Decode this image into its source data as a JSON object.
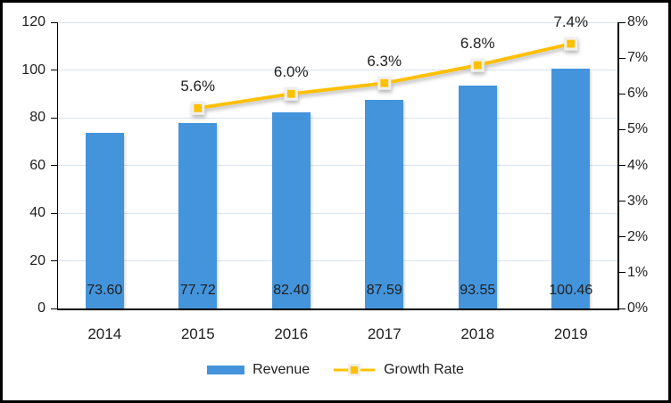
{
  "chart_data": {
    "type": "bar",
    "subtype": "combo-bar-line-dual-axis",
    "categories": [
      "2014",
      "2015",
      "2016",
      "2017",
      "2018",
      "2019"
    ],
    "series": [
      {
        "name": "Revenue",
        "type": "bar",
        "axis": "left",
        "values": [
          73.6,
          77.72,
          82.4,
          87.59,
          93.55,
          100.46
        ],
        "data_labels": [
          "73.60",
          "77.72",
          "82.40",
          "87.59",
          "93.55",
          "100.46"
        ],
        "color": "#4494DB"
      },
      {
        "name": "Growth Rate",
        "type": "line",
        "axis": "right",
        "values": [
          null,
          5.6,
          6.0,
          6.3,
          6.8,
          7.4
        ],
        "data_labels": [
          "",
          "5.6%",
          "6.0%",
          "6.3%",
          "6.8%",
          "7.4%"
        ],
        "color": "#FFC000",
        "marker": "square",
        "marker_border_color": "#F0EFED"
      }
    ],
    "left_axis": {
      "min": 0,
      "max": 120,
      "step": 20,
      "tick_labels": [
        "0",
        "20",
        "40",
        "60",
        "80",
        "100",
        "120"
      ]
    },
    "right_axis": {
      "min": 0,
      "max": 8,
      "step": 1,
      "tick_labels": [
        "0%",
        "1%",
        "2%",
        "3%",
        "4%",
        "5%",
        "6%",
        "7%",
        "8%"
      ]
    },
    "legend": {
      "position": "bottom",
      "entries": [
        {
          "label": "Revenue",
          "swatch": "bar",
          "color": "#4494DB"
        },
        {
          "label": "Growth Rate",
          "swatch": "line-marker",
          "color": "#FFC000"
        }
      ]
    },
    "grid": true,
    "gridline_color": "#D9E2F3",
    "axis_line_color": "#000000",
    "text_color": "#1f1f1f",
    "background_color": "#FFFFFF",
    "border_color": "#000000"
  }
}
